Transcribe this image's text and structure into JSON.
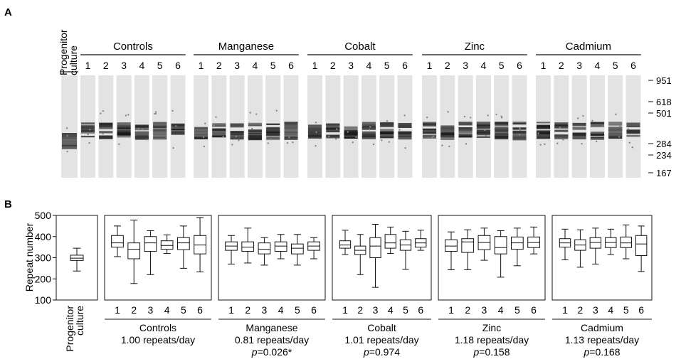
{
  "panel_a": {
    "label": "A",
    "progenitor_label": [
      "Progenitor",
      "culture"
    ],
    "groups": [
      "Controls",
      "Manganese",
      "Cobalt",
      "Zinc",
      "Cadmium"
    ],
    "lanes": [
      "1",
      "2",
      "3",
      "4",
      "5",
      "6"
    ],
    "size_markers": [
      "951",
      "618",
      "501",
      "284",
      "234",
      "167"
    ]
  },
  "panel_b": {
    "label": "B",
    "progenitor_label": [
      "Progenitor",
      "culture"
    ],
    "group_rates": [
      "1.00 repeats/day",
      "0.81 repeats/day",
      "1.01 repeats/day",
      "1.18 repeats/day",
      "1.13 repeats/day"
    ],
    "group_pvalues": [
      "",
      "p=0.026*",
      "p=0.974",
      "p=0.158",
      "p=0.168"
    ]
  },
  "chart_data": {
    "type": "box",
    "ylabel": "Repeat number",
    "ylim": [
      100,
      500
    ],
    "yticks": [
      100,
      200,
      300,
      400,
      500
    ],
    "progenitor": {
      "min": 237,
      "q1": 287,
      "median": 298,
      "q3": 312,
      "max": 345
    },
    "groups": [
      {
        "name": "Controls",
        "rate": "1.00 repeats/day",
        "p": "",
        "boxes": [
          {
            "min": 305,
            "q1": 350,
            "median": 370,
            "q3": 405,
            "max": 450
          },
          {
            "min": 178,
            "q1": 295,
            "median": 340,
            "q3": 370,
            "max": 478
          },
          {
            "min": 220,
            "q1": 330,
            "median": 370,
            "q3": 400,
            "max": 428
          },
          {
            "min": 320,
            "q1": 340,
            "median": 358,
            "q3": 380,
            "max": 408
          },
          {
            "min": 250,
            "q1": 338,
            "median": 370,
            "q3": 395,
            "max": 450
          },
          {
            "min": 233,
            "q1": 318,
            "median": 360,
            "q3": 405,
            "max": 490
          }
        ]
      },
      {
        "name": "Manganese",
        "rate": "0.81 repeats/day",
        "p": "p=0.026*",
        "boxes": [
          {
            "min": 270,
            "q1": 335,
            "median": 355,
            "q3": 375,
            "max": 405
          },
          {
            "min": 275,
            "q1": 330,
            "median": 350,
            "q3": 375,
            "max": 440
          },
          {
            "min": 265,
            "q1": 318,
            "median": 340,
            "q3": 370,
            "max": 395
          },
          {
            "min": 295,
            "q1": 330,
            "median": 355,
            "q3": 375,
            "max": 410
          },
          {
            "min": 265,
            "q1": 318,
            "median": 345,
            "q3": 365,
            "max": 410
          },
          {
            "min": 295,
            "q1": 335,
            "median": 355,
            "q3": 375,
            "max": 395
          }
        ]
      },
      {
        "name": "Cobalt",
        "rate": "1.01 repeats/day",
        "p": "p=0.974",
        "boxes": [
          {
            "min": 315,
            "q1": 345,
            "median": 360,
            "q3": 380,
            "max": 430
          },
          {
            "min": 220,
            "q1": 315,
            "median": 335,
            "q3": 355,
            "max": 410
          },
          {
            "min": 160,
            "q1": 300,
            "median": 355,
            "q3": 395,
            "max": 458
          },
          {
            "min": 320,
            "q1": 345,
            "median": 370,
            "q3": 410,
            "max": 445
          },
          {
            "min": 245,
            "q1": 335,
            "median": 360,
            "q3": 385,
            "max": 425
          },
          {
            "min": 335,
            "q1": 350,
            "median": 370,
            "q3": 390,
            "max": 430
          }
        ]
      },
      {
        "name": "Zinc",
        "rate": "1.18 repeats/day",
        "p": "p=0.158",
        "boxes": [
          {
            "min": 243,
            "q1": 330,
            "median": 355,
            "q3": 385,
            "max": 422
          },
          {
            "min": 243,
            "q1": 325,
            "median": 375,
            "q3": 390,
            "max": 432
          },
          {
            "min": 288,
            "q1": 338,
            "median": 372,
            "q3": 405,
            "max": 440
          },
          {
            "min": 208,
            "q1": 318,
            "median": 348,
            "q3": 400,
            "max": 428
          },
          {
            "min": 262,
            "q1": 340,
            "median": 370,
            "q3": 398,
            "max": 440
          },
          {
            "min": 318,
            "q1": 348,
            "median": 372,
            "q3": 398,
            "max": 445
          }
        ]
      },
      {
        "name": "Cadmium",
        "rate": "1.13 repeats/day",
        "p": "p=0.168",
        "boxes": [
          {
            "min": 290,
            "q1": 350,
            "median": 370,
            "q3": 390,
            "max": 435
          },
          {
            "min": 255,
            "q1": 335,
            "median": 360,
            "q3": 385,
            "max": 432
          },
          {
            "min": 270,
            "q1": 345,
            "median": 372,
            "q3": 395,
            "max": 440
          },
          {
            "min": 315,
            "q1": 348,
            "median": 372,
            "q3": 395,
            "max": 435
          },
          {
            "min": 295,
            "q1": 348,
            "median": 370,
            "q3": 398,
            "max": 455
          },
          {
            "min": 235,
            "q1": 310,
            "median": 365,
            "q3": 405,
            "max": 450
          }
        ]
      }
    ]
  }
}
